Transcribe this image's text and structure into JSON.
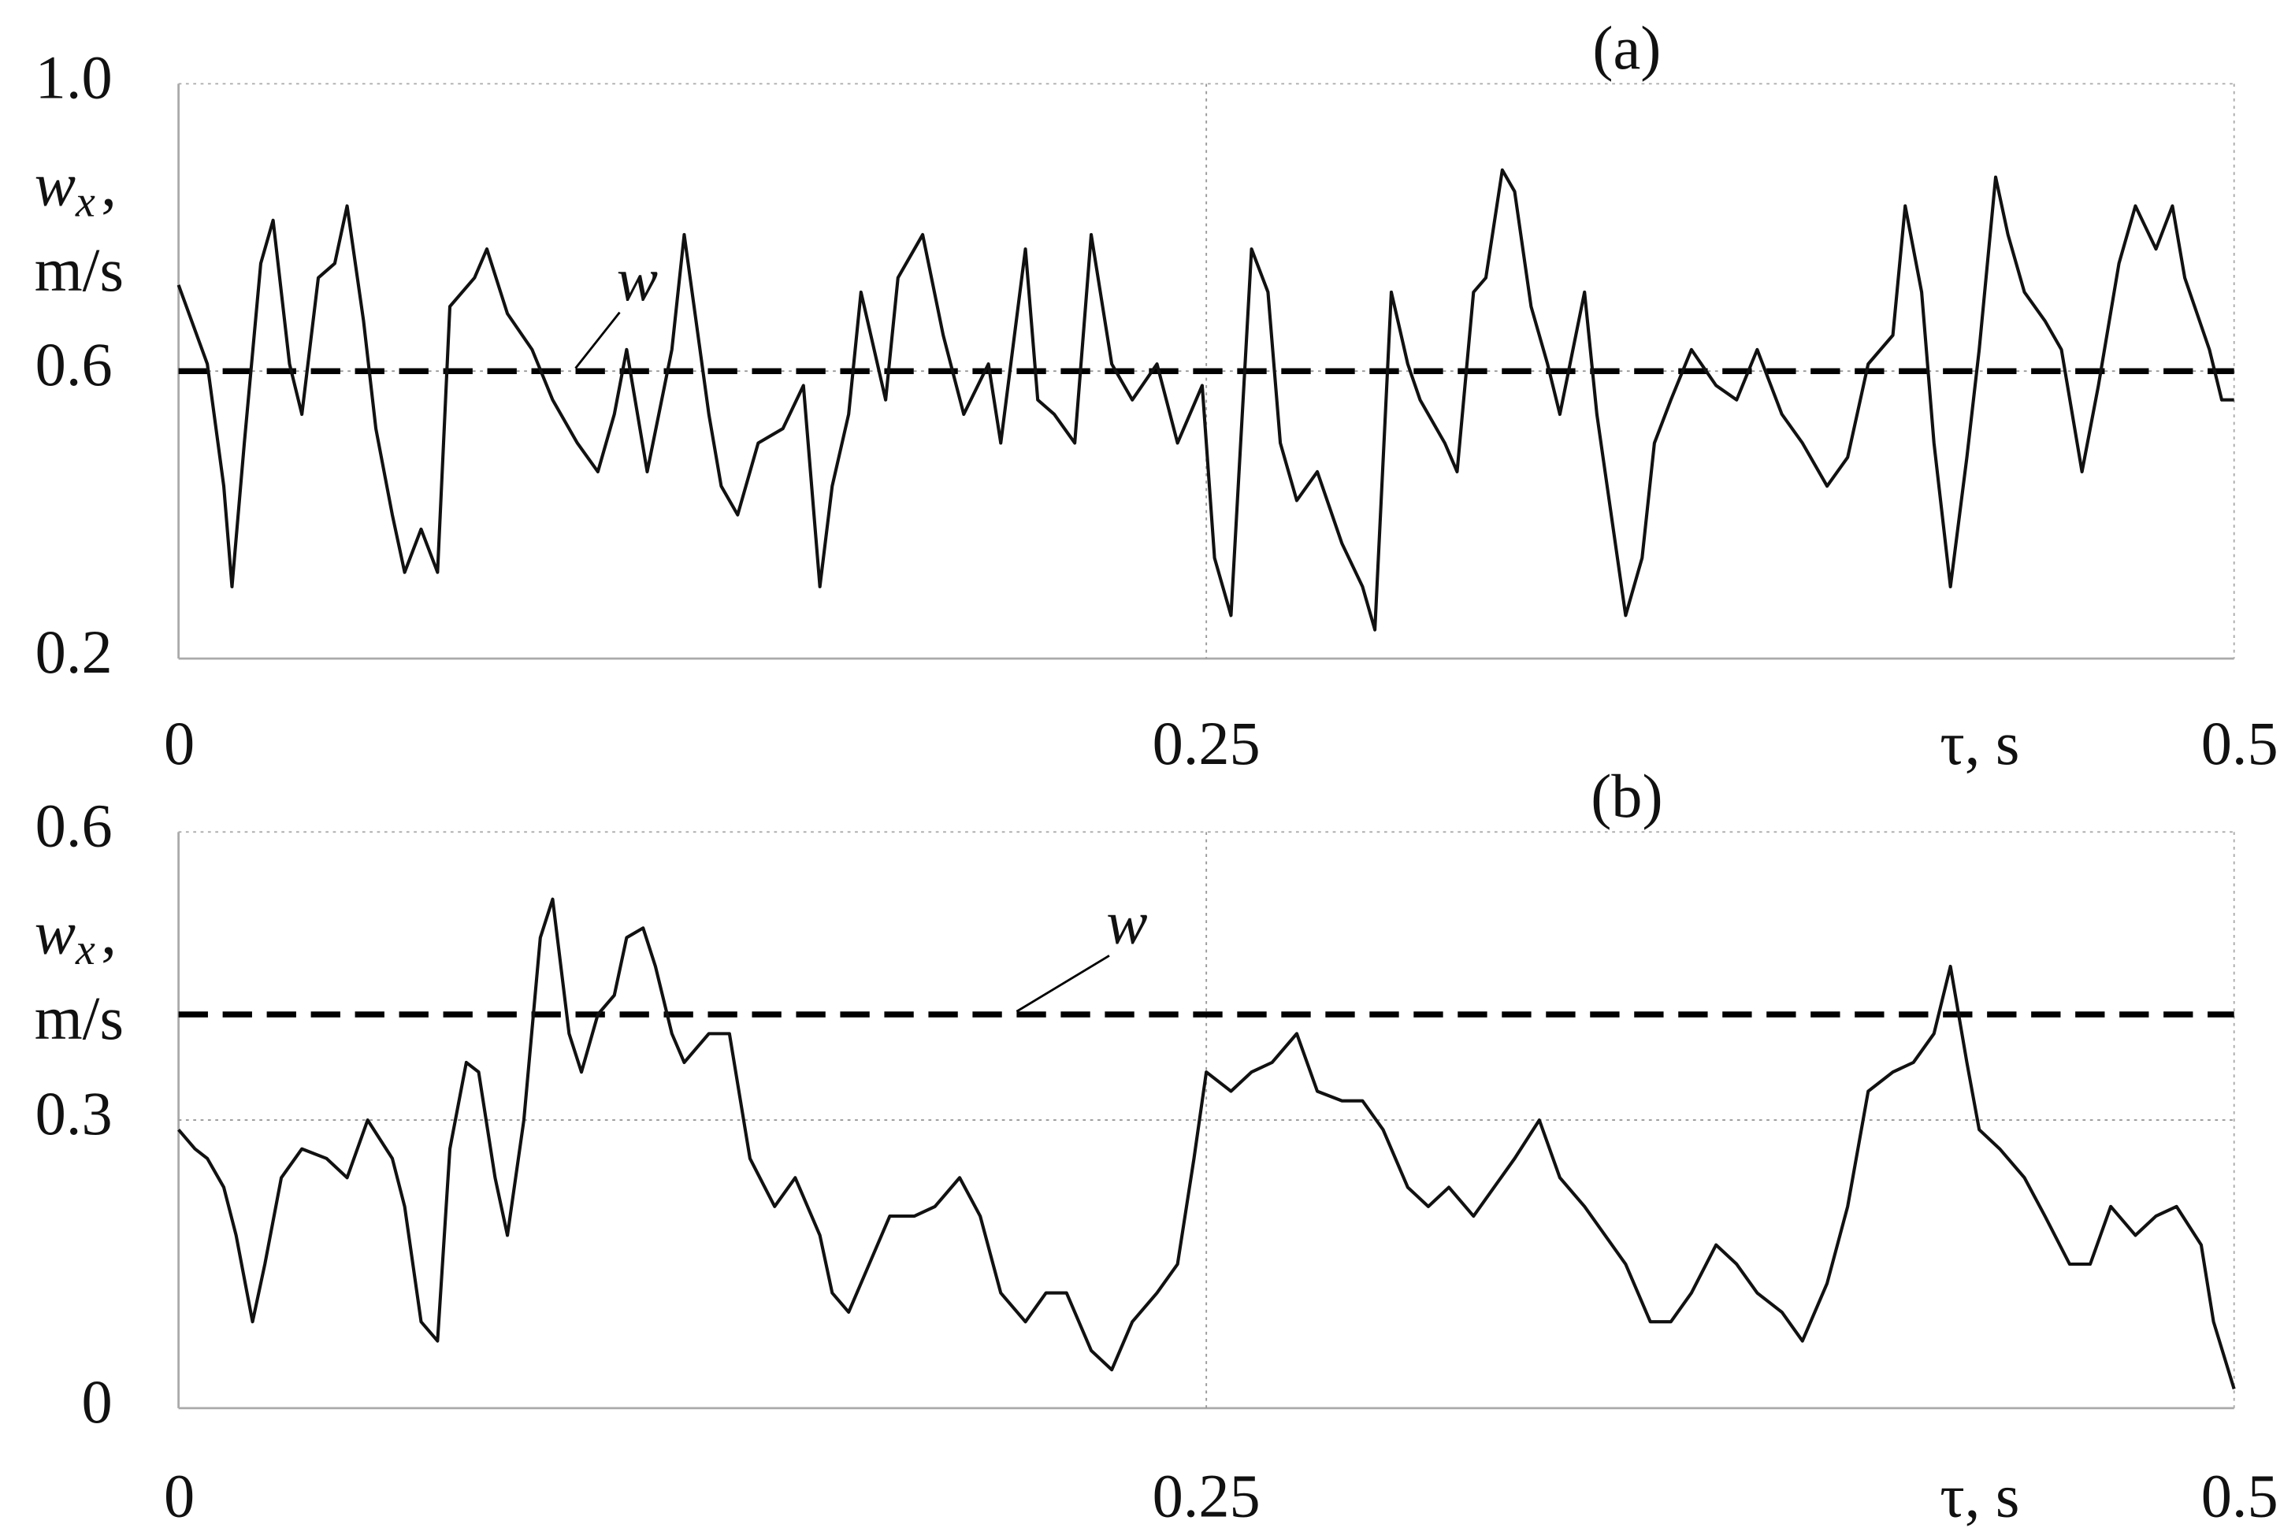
{
  "chart_data": [
    {
      "type": "line",
      "panel_label": "(a)",
      "y_label": {
        "symbol": "w",
        "subscript": "x",
        "separator": ",",
        "unit": "m/s"
      },
      "x_label": "τ, s",
      "xlim": [
        0,
        0.5
      ],
      "xticks": [
        0,
        0.25,
        0.5
      ],
      "ylim": [
        0.2,
        1.0
      ],
      "yticks": [
        0.2,
        0.6,
        {
          "value": 1.0,
          "label": "1.0"
        }
      ],
      "grid": true,
      "reference_line": {
        "value": 0.6,
        "label": "w"
      },
      "x": [
        0,
        0.007,
        0.011,
        0.013,
        0.016,
        0.02,
        0.023,
        0.027,
        0.03,
        0.034,
        0.038,
        0.041,
        0.045,
        0.048,
        0.052,
        0.055,
        0.059,
        0.063,
        0.066,
        0.072,
        0.075,
        0.08,
        0.086,
        0.091,
        0.097,
        0.102,
        0.106,
        0.109,
        0.114,
        0.12,
        0.123,
        0.129,
        0.132,
        0.136,
        0.141,
        0.147,
        0.152,
        0.156,
        0.159,
        0.163,
        0.166,
        0.172,
        0.175,
        0.181,
        0.186,
        0.191,
        0.197,
        0.2,
        0.206,
        0.209,
        0.213,
        0.218,
        0.222,
        0.227,
        0.232,
        0.238,
        0.243,
        0.249,
        0.252,
        0.256,
        0.261,
        0.265,
        0.268,
        0.272,
        0.277,
        0.283,
        0.288,
        0.291,
        0.295,
        0.299,
        0.302,
        0.308,
        0.311,
        0.315,
        0.318,
        0.322,
        0.325,
        0.329,
        0.333,
        0.336,
        0.342,
        0.345,
        0.349,
        0.352,
        0.356,
        0.359,
        0.363,
        0.368,
        0.374,
        0.379,
        0.384,
        0.39,
        0.395,
        0.401,
        0.406,
        0.411,
        0.417,
        0.42,
        0.424,
        0.427,
        0.431,
        0.435,
        0.438,
        0.442,
        0.445,
        0.449,
        0.454,
        0.458,
        0.463,
        0.467,
        0.472,
        0.476,
        0.481,
        0.485,
        0.488,
        0.494,
        0.497,
        0.5
      ],
      "series": [
        {
          "color": "#111111",
          "values": [
            0.72,
            0.61,
            0.44,
            0.3,
            0.5,
            0.75,
            0.81,
            0.61,
            0.54,
            0.73,
            0.75,
            0.83,
            0.67,
            0.52,
            0.4,
            0.32,
            0.38,
            0.32,
            0.69,
            0.73,
            0.77,
            0.68,
            0.63,
            0.56,
            0.5,
            0.46,
            0.54,
            0.63,
            0.46,
            0.63,
            0.79,
            0.54,
            0.44,
            0.4,
            0.5,
            0.52,
            0.58,
            0.3,
            0.44,
            0.54,
            0.71,
            0.56,
            0.73,
            0.79,
            0.65,
            0.54,
            0.61,
            0.5,
            0.77,
            0.56,
            0.54,
            0.5,
            0.79,
            0.61,
            0.56,
            0.61,
            0.5,
            0.58,
            0.34,
            0.26,
            0.77,
            0.71,
            0.5,
            0.42,
            0.46,
            0.36,
            0.3,
            0.24,
            0.71,
            0.61,
            0.56,
            0.5,
            0.46,
            0.71,
            0.73,
            0.88,
            0.85,
            0.69,
            0.61,
            0.54,
            0.71,
            0.54,
            0.38,
            0.26,
            0.34,
            0.5,
            0.56,
            0.63,
            0.58,
            0.56,
            0.63,
            0.54,
            0.5,
            0.44,
            0.48,
            0.61,
            0.65,
            0.83,
            0.71,
            0.5,
            0.3,
            0.48,
            0.63,
            0.87,
            0.79,
            0.71,
            0.67,
            0.63,
            0.46,
            0.58,
            0.75,
            0.83,
            0.77,
            0.83,
            0.73,
            0.63,
            0.56,
            0.56
          ]
        }
      ]
    },
    {
      "type": "line",
      "panel_label": "(b)",
      "y_label": {
        "symbol": "w",
        "subscript": "x",
        "separator": ",",
        "unit": "m/s"
      },
      "x_label": "τ, s",
      "xlim": [
        0,
        0.5
      ],
      "xticks": [
        0,
        0.25,
        0.5
      ],
      "ylim": [
        0,
        0.6
      ],
      "yticks": [
        0,
        0.3,
        0.6
      ],
      "grid": true,
      "reference_line": {
        "value": 0.41,
        "label": "w"
      },
      "x": [
        0,
        0.004,
        0.007,
        0.011,
        0.014,
        0.018,
        0.021,
        0.025,
        0.03,
        0.036,
        0.041,
        0.046,
        0.052,
        0.055,
        0.059,
        0.063,
        0.066,
        0.07,
        0.073,
        0.077,
        0.08,
        0.084,
        0.088,
        0.091,
        0.095,
        0.098,
        0.102,
        0.106,
        0.109,
        0.113,
        0.116,
        0.12,
        0.123,
        0.129,
        0.134,
        0.139,
        0.145,
        0.15,
        0.156,
        0.159,
        0.163,
        0.168,
        0.173,
        0.179,
        0.184,
        0.19,
        0.195,
        0.2,
        0.206,
        0.211,
        0.216,
        0.222,
        0.227,
        0.232,
        0.238,
        0.243,
        0.247,
        0.25,
        0.256,
        0.261,
        0.266,
        0.272,
        0.277,
        0.283,
        0.288,
        0.293,
        0.299,
        0.304,
        0.309,
        0.315,
        0.32,
        0.325,
        0.331,
        0.336,
        0.342,
        0.347,
        0.352,
        0.358,
        0.363,
        0.368,
        0.374,
        0.379,
        0.384,
        0.39,
        0.395,
        0.401,
        0.406,
        0.411,
        0.417,
        0.422,
        0.427,
        0.431,
        0.435,
        0.438,
        0.443,
        0.449,
        0.454,
        0.46,
        0.465,
        0.47,
        0.476,
        0.481,
        0.486,
        0.492,
        0.495,
        0.5
      ],
      "series": [
        {
          "color": "#111111",
          "values": [
            0.29,
            0.27,
            0.26,
            0.23,
            0.18,
            0.09,
            0.15,
            0.24,
            0.27,
            0.26,
            0.24,
            0.3,
            0.26,
            0.21,
            0.09,
            0.07,
            0.27,
            0.36,
            0.35,
            0.24,
            0.18,
            0.3,
            0.49,
            0.53,
            0.39,
            0.35,
            0.41,
            0.43,
            0.49,
            0.5,
            0.46,
            0.39,
            0.36,
            0.39,
            0.39,
            0.26,
            0.21,
            0.24,
            0.18,
            0.12,
            0.1,
            0.15,
            0.2,
            0.2,
            0.21,
            0.24,
            0.2,
            0.12,
            0.09,
            0.12,
            0.12,
            0.06,
            0.04,
            0.09,
            0.12,
            0.15,
            0.26,
            0.35,
            0.33,
            0.35,
            0.36,
            0.39,
            0.33,
            0.32,
            0.32,
            0.29,
            0.23,
            0.21,
            0.23,
            0.2,
            0.23,
            0.26,
            0.3,
            0.24,
            0.21,
            0.18,
            0.15,
            0.09,
            0.09,
            0.12,
            0.17,
            0.15,
            0.12,
            0.1,
            0.07,
            0.13,
            0.21,
            0.33,
            0.35,
            0.36,
            0.39,
            0.46,
            0.36,
            0.29,
            0.27,
            0.24,
            0.2,
            0.15,
            0.15,
            0.21,
            0.18,
            0.2,
            0.21,
            0.17,
            0.09,
            0.02
          ]
        }
      ]
    }
  ]
}
